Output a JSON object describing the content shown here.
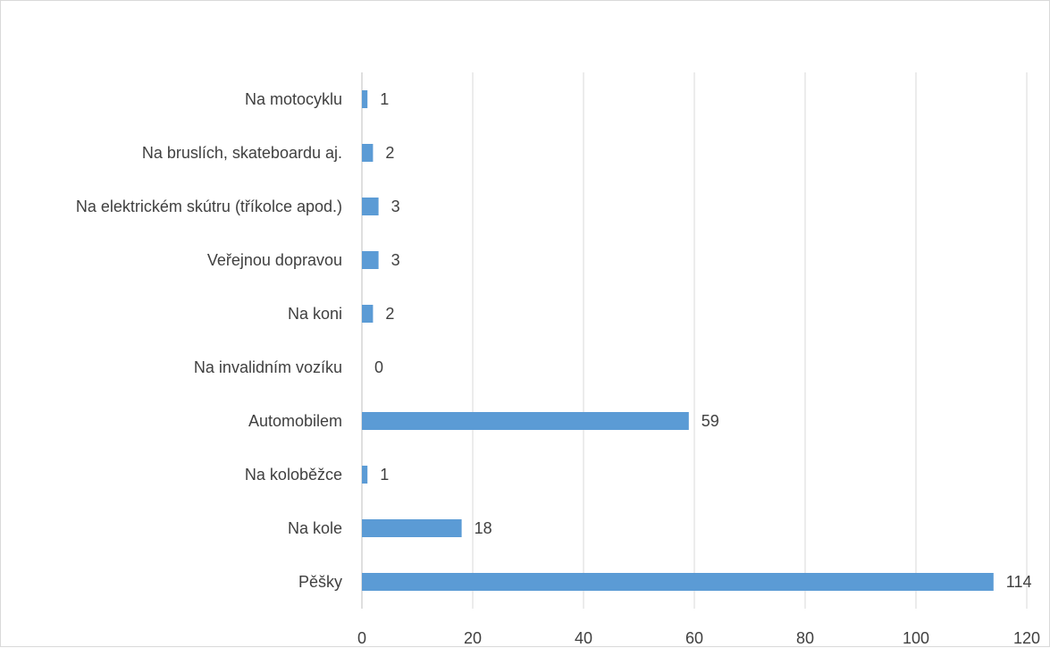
{
  "chart_data": {
    "type": "bar",
    "orientation": "horizontal",
    "title": "",
    "xlabel": "",
    "ylabel": "",
    "categories": [
      "Na motocyklu",
      "Na bruslích, skateboardu aj.",
      "Na elektrickém skútru (tříkolce apod.)",
      "Veřejnou dopravou",
      "Na koni",
      "Na invalidním vozíku",
      "Automobilem",
      "Na koloběžce",
      "Na kole",
      "Pěšky"
    ],
    "values": [
      1,
      2,
      3,
      3,
      2,
      0,
      59,
      1,
      18,
      114
    ],
    "xlim": [
      0,
      120
    ],
    "xticks": [
      0,
      20,
      40,
      60,
      80,
      100,
      120
    ],
    "grid": "vertical",
    "legend": "none",
    "bar_color": "#5b9bd5",
    "grid_color": "#d9d9d9",
    "axis_color": "#bfbfbf",
    "text_color": "#404040"
  }
}
